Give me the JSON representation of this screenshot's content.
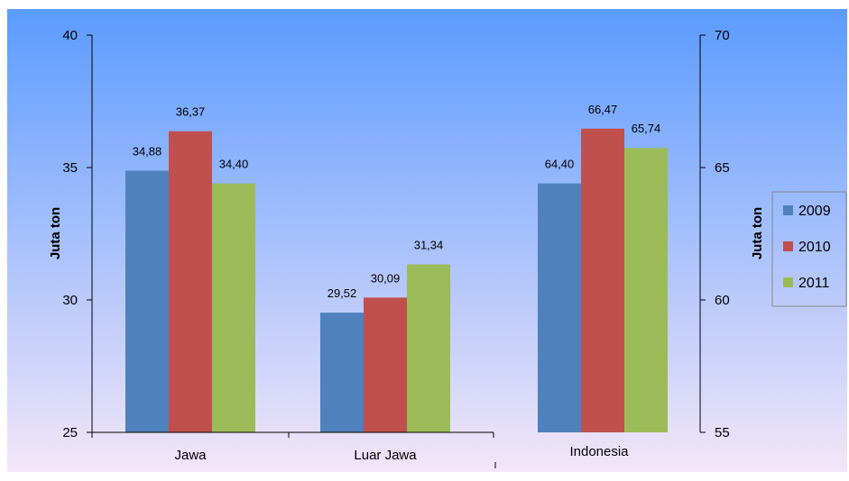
{
  "chart_data": {
    "type": "bar",
    "categories": [
      "Jawa",
      "Luar Jawa",
      "Indonesia"
    ],
    "series": [
      {
        "name": "2009",
        "values": [
          34.88,
          29.52,
          64.4
        ],
        "labels": [
          "34,88",
          "29,52",
          "64,40"
        ],
        "color": "#4F81BD"
      },
      {
        "name": "2010",
        "values": [
          36.37,
          30.09,
          66.47
        ],
        "labels": [
          "36,37",
          "30,09",
          "66,47"
        ],
        "color": "#C0504D"
      },
      {
        "name": "2011",
        "values": [
          34.4,
          31.34,
          65.74
        ],
        "labels": [
          "34,40",
          "31,34",
          "65,74"
        ],
        "color": "#9BBB59"
      }
    ],
    "value_axis_for_category": [
      "left",
      "left",
      "right"
    ],
    "y_left": {
      "label": "Juta ton",
      "ylim": [
        25,
        40
      ],
      "ticks": [
        "25",
        "30",
        "35",
        "40"
      ]
    },
    "y_right": {
      "label": "Juta ton",
      "ylim": [
        55,
        70
      ],
      "ticks": [
        "55",
        "60",
        "65",
        "70"
      ]
    },
    "legend": {
      "position": "right",
      "entries": [
        "2009",
        "2010",
        "2011"
      ]
    },
    "grid": false,
    "background": {
      "top": "#5B9BFF",
      "bottom": "#F3E6F8"
    }
  }
}
